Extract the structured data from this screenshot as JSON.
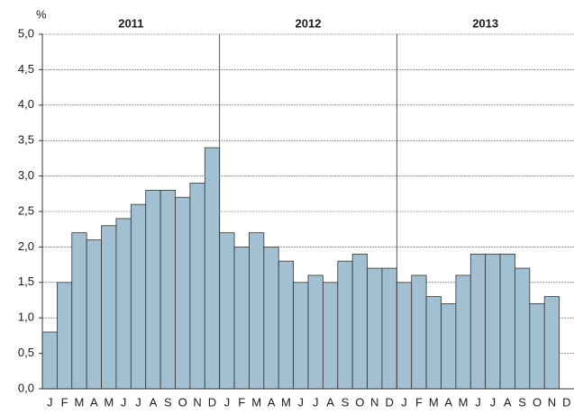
{
  "chart_data": {
    "type": "bar",
    "y_unit": "%",
    "groups": [
      "2011",
      "2012",
      "2013"
    ],
    "categories": [
      "J",
      "F",
      "M",
      "A",
      "M",
      "J",
      "J",
      "A",
      "S",
      "O",
      "N",
      "D",
      "J",
      "F",
      "M",
      "A",
      "M",
      "J",
      "J",
      "A",
      "S",
      "O",
      "N",
      "D",
      "J",
      "F",
      "M",
      "A",
      "M",
      "J",
      "J",
      "A",
      "S",
      "O",
      "N",
      "D"
    ],
    "values": [
      0.8,
      1.5,
      2.2,
      2.1,
      2.3,
      2.4,
      2.6,
      2.8,
      2.8,
      2.7,
      2.9,
      3.4,
      2.2,
      2.0,
      2.2,
      2.0,
      1.8,
      1.5,
      1.6,
      1.5,
      1.8,
      1.9,
      1.7,
      1.7,
      1.5,
      1.6,
      1.3,
      1.2,
      1.6,
      1.9,
      1.9,
      1.9,
      1.7,
      1.2,
      1.3,
      null
    ],
    "color": "#a3bfd2",
    "ylim": [
      0,
      5
    ],
    "yticks": [
      {
        "value": 0,
        "label": "0,0"
      },
      {
        "value": 0.5,
        "label": "0,5"
      },
      {
        "value": 1,
        "label": "1,0"
      },
      {
        "value": 1.5,
        "label": "1,5"
      },
      {
        "value": 2,
        "label": "2,0"
      },
      {
        "value": 2.5,
        "label": "2,5"
      },
      {
        "value": 3,
        "label": "3,0"
      },
      {
        "value": 3.5,
        "label": "3,5"
      },
      {
        "value": 4,
        "label": "4,0"
      },
      {
        "value": 4.5,
        "label": "4,5"
      },
      {
        "value": 5,
        "label": "5,0"
      }
    ],
    "grid": true
  }
}
